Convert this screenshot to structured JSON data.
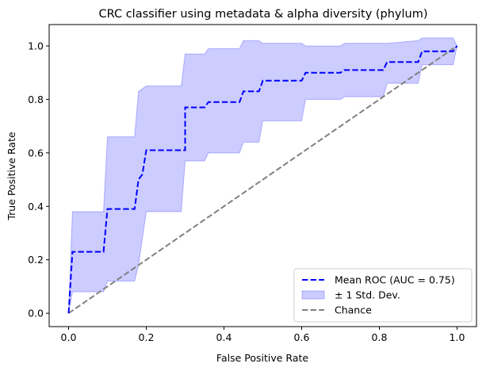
{
  "chart_data": {
    "type": "line",
    "title": "CRC classifier using metadata & alpha diversity (phylum)",
    "xlabel": "False Positive Rate",
    "ylabel": "True Positive Rate",
    "xlim": [
      -0.05,
      1.05
    ],
    "ylim": [
      -0.05,
      1.08
    ],
    "xticks": [
      0.0,
      0.2,
      0.4,
      0.6,
      0.8,
      1.0
    ],
    "xtick_labels": [
      "0.0",
      "0.2",
      "0.4",
      "0.6",
      "0.8",
      "1.0"
    ],
    "yticks": [
      0.0,
      0.2,
      0.4,
      0.6,
      0.8,
      1.0
    ],
    "ytick_labels": [
      "0.0",
      "0.2",
      "0.4",
      "0.6",
      "0.8",
      "1.0"
    ],
    "grid": false,
    "legend_position": "lower-right",
    "series": [
      {
        "name": "Mean ROC (AUC = 0.75)",
        "kind": "line",
        "style": "dashed",
        "color": "#0000ff",
        "x": [
          0,
          0.01,
          0.01,
          0.09,
          0.1,
          0.17,
          0.18,
          0.19,
          0.2,
          0.3,
          0.3,
          0.35,
          0.36,
          0.44,
          0.45,
          0.49,
          0.5,
          0.6,
          0.61,
          0.7,
          0.71,
          0.81,
          0.82,
          0.9,
          0.91,
          0.99,
          1.0
        ],
        "y": [
          0,
          0.23,
          0.23,
          0.23,
          0.39,
          0.39,
          0.5,
          0.52,
          0.61,
          0.61,
          0.77,
          0.77,
          0.79,
          0.79,
          0.83,
          0.83,
          0.87,
          0.87,
          0.9,
          0.9,
          0.91,
          0.91,
          0.94,
          0.94,
          0.98,
          0.98,
          1.0
        ]
      },
      {
        "name": "± 1 Std. Dev.",
        "kind": "band",
        "color": "#0000ff",
        "opacity": 0.2,
        "x": [
          0,
          0.01,
          0.09,
          0.1,
          0.17,
          0.18,
          0.2,
          0.29,
          0.3,
          0.35,
          0.36,
          0.44,
          0.45,
          0.49,
          0.5,
          0.6,
          0.61,
          0.7,
          0.71,
          0.81,
          0.82,
          0.9,
          0.91,
          0.99,
          1.0
        ],
        "upper": [
          0,
          0.38,
          0.38,
          0.66,
          0.66,
          0.83,
          0.85,
          0.85,
          0.97,
          0.97,
          0.99,
          0.99,
          1.02,
          1.02,
          1.01,
          1.01,
          1.0,
          1.0,
          1.01,
          1.01,
          1.01,
          1.02,
          1.03,
          1.03,
          1.0
        ],
        "lower": [
          0,
          0.08,
          0.08,
          0.12,
          0.12,
          0.18,
          0.38,
          0.38,
          0.57,
          0.57,
          0.6,
          0.6,
          0.64,
          0.64,
          0.72,
          0.72,
          0.8,
          0.8,
          0.81,
          0.81,
          0.86,
          0.86,
          0.93,
          0.93,
          1.0
        ]
      },
      {
        "name": "Chance",
        "kind": "line",
        "style": "dashed",
        "color": "#808080",
        "x": [
          0,
          1
        ],
        "y": [
          0,
          1
        ]
      }
    ]
  }
}
